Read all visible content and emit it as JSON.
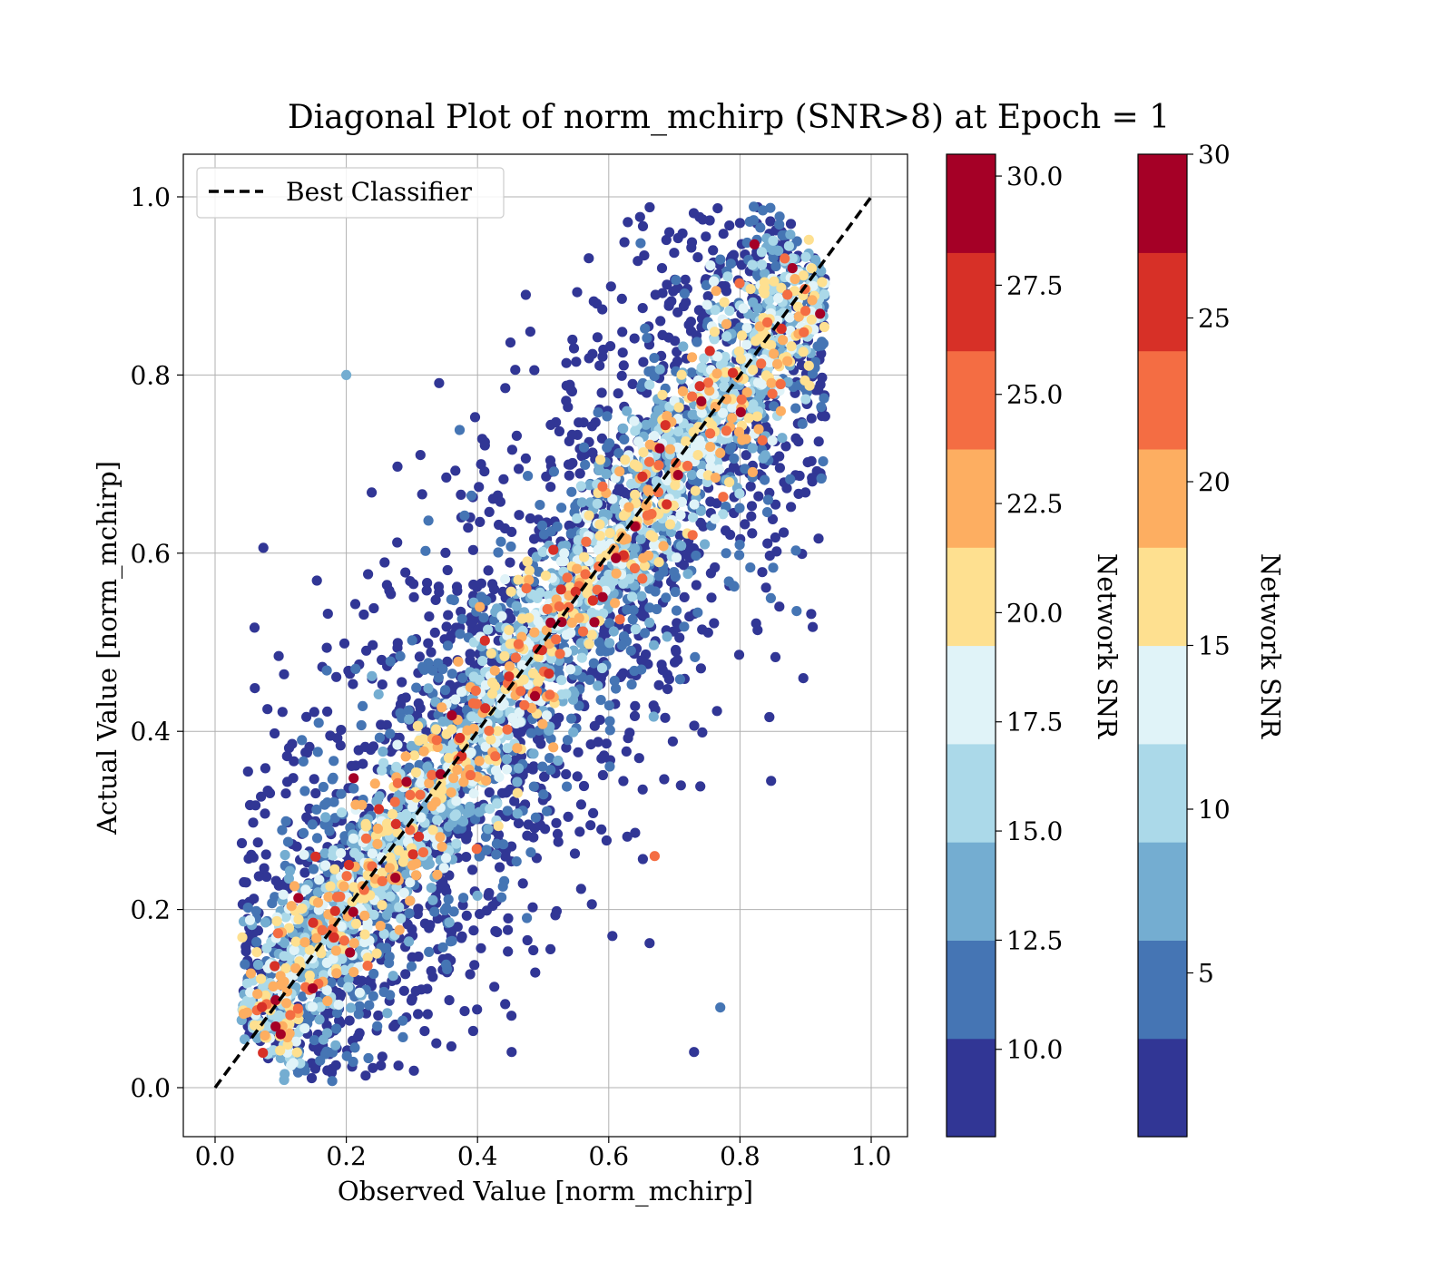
{
  "chart_data": {
    "type": "scatter",
    "title": "Diagonal Plot of norm_mchirp (SNR>8) at Epoch = 1",
    "xlabel": "Observed Value [norm_mchirp]",
    "ylabel": "Actual Value [norm_mchirp]",
    "xlim": [
      -0.05,
      1.05
    ],
    "ylim": [
      -0.1,
      1.05
    ],
    "xticks": [
      0.0,
      0.2,
      0.4,
      0.6,
      0.8,
      1.0
    ],
    "yticks": [
      0.0,
      0.2,
      0.4,
      0.6,
      0.8,
      1.0
    ],
    "xtick_labels": [
      "0.0",
      "0.2",
      "0.4",
      "0.6",
      "0.8",
      "1.0"
    ],
    "ytick_labels": [
      "0.0",
      "0.2",
      "0.4",
      "0.6",
      "0.8",
      "1.0"
    ],
    "grid": true,
    "legend": {
      "placement": "upper-left",
      "entries": [
        {
          "label": "Best Classifier",
          "style": "dashed",
          "color": "#000000"
        }
      ]
    },
    "reference_line": {
      "name": "Best Classifier",
      "x": [
        0.0,
        1.0
      ],
      "y": [
        0.0,
        1.0
      ]
    },
    "scatter": {
      "description": "approx. several thousand points clustered along y = x, colored by Network SNR",
      "point_count_estimate": 5000,
      "color_by": "Network SNR",
      "notable_points": [
        {
          "x": 0.2,
          "y": 0.8,
          "snr": 14
        },
        {
          "x": 0.86,
          "y": 0.54,
          "snr": 9
        },
        {
          "x": 0.77,
          "y": 0.09,
          "snr": 12
        },
        {
          "x": 0.73,
          "y": 0.04,
          "snr": 9
        },
        {
          "x": 0.67,
          "y": 0.26,
          "snr": 25
        },
        {
          "x": 0.64,
          "y": 0.63,
          "snr": 30
        },
        {
          "x": 0.88,
          "y": 0.92,
          "snr": 30
        },
        {
          "x": 0.1,
          "y": 0.06,
          "snr": 30
        }
      ]
    },
    "colorbars": [
      {
        "label": "Network SNR",
        "range": [
          8.0,
          30.5
        ],
        "ticks": [
          10.0,
          12.5,
          15.0,
          17.5,
          20.0,
          22.5,
          25.0,
          27.5,
          30.0
        ],
        "tick_labels": [
          "10.0",
          "12.5",
          "15.0",
          "17.5",
          "20.0",
          "22.5",
          "25.0",
          "27.5",
          "30.0"
        ]
      },
      {
        "label": "Network SNR",
        "range": [
          0.0,
          30.0
        ],
        "ticks": [
          5,
          10,
          15,
          20,
          25,
          30
        ],
        "tick_labels": [
          "5",
          "10",
          "15",
          "20",
          "25",
          "30"
        ]
      }
    ],
    "colormap": [
      "#313695",
      "#4575b4",
      "#74add1",
      "#abd9e9",
      "#e0f3f8",
      "#fee090",
      "#fdae61",
      "#f46d43",
      "#d73027",
      "#a50026"
    ]
  }
}
